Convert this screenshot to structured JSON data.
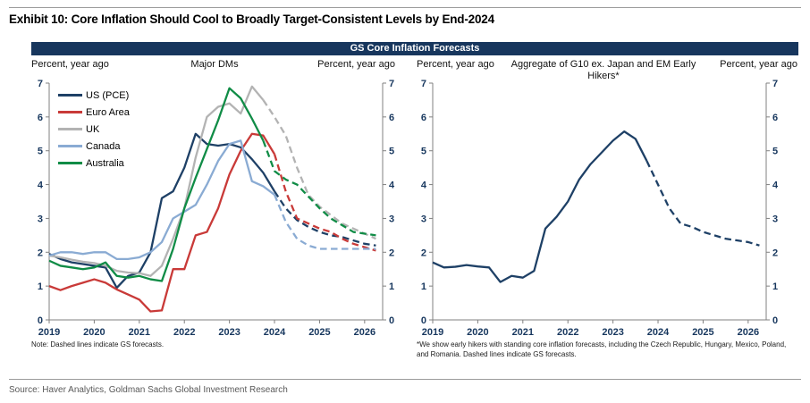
{
  "page": {
    "exhibit_title": "Exhibit 10: Core Inflation Should Cool to Broadly Target-Consistent Levels by End-2024",
    "banner_title": "GS Core Inflation Forecasts",
    "source": "Source: Haver Analytics, Goldman Sachs Global Investment Research"
  },
  "colors": {
    "banner_bg": "#17365d",
    "banner_text": "#ffffff",
    "axis_line": "#808080",
    "tick_label": "#17375e",
    "us_navy": "#1e4066",
    "euro_red": "#c93a38",
    "uk_gray": "#b3b3b3",
    "canada_blue": "#8aabd3",
    "australia_green": "#108c46"
  },
  "chart_data": [
    {
      "type": "line",
      "title": "Major DMs",
      "ylabel_left": "Percent, year ago",
      "ylabel_right": "Percent, year ago",
      "note": "Note: Dashed lines indicate GS forecasts.",
      "legend_position": "upper-left",
      "grid": false,
      "ylim": [
        0,
        7
      ],
      "y_ticks": [
        0,
        1,
        2,
        3,
        4,
        5,
        6,
        7
      ],
      "x_min": 2019,
      "x_max": 2026.4,
      "x_ticks": [
        2019,
        2020,
        2021,
        2022,
        2023,
        2024,
        2025,
        2026
      ],
      "x_start": 2019.0,
      "x_step": 0.25,
      "forecast_style": "dashed lines from forecast_from_index onward are GS forecasts",
      "series": [
        {
          "name": "US (PCE)",
          "color": "#1e4066",
          "forecast_from_index": 20,
          "values": [
            1.95,
            1.8,
            1.7,
            1.65,
            1.6,
            1.55,
            0.95,
            1.3,
            1.4,
            2.0,
            3.6,
            3.8,
            4.5,
            5.5,
            5.2,
            5.15,
            5.2,
            5.1,
            4.75,
            4.35,
            3.8,
            3.3,
            2.95,
            2.75,
            2.6,
            2.5,
            2.45,
            2.35,
            2.25,
            2.2
          ]
        },
        {
          "name": "Euro Area",
          "color": "#c93a38",
          "forecast_from_index": 20,
          "values": [
            1.0,
            0.88,
            1.0,
            1.1,
            1.2,
            1.1,
            0.9,
            0.75,
            0.6,
            0.25,
            0.28,
            1.5,
            1.5,
            2.5,
            2.6,
            3.3,
            4.3,
            5.0,
            5.5,
            5.45,
            4.9,
            3.8,
            3.0,
            2.85,
            2.7,
            2.6,
            2.4,
            2.25,
            2.15,
            2.05
          ]
        },
        {
          "name": "UK",
          "color": "#b3b3b3",
          "forecast_from_index": 19,
          "values": [
            1.9,
            1.85,
            1.78,
            1.72,
            1.68,
            1.6,
            1.45,
            1.4,
            1.38,
            1.3,
            1.6,
            2.4,
            3.3,
            4.8,
            6.0,
            6.3,
            6.4,
            6.1,
            6.9,
            6.5,
            6.0,
            5.45,
            4.5,
            3.7,
            3.35,
            3.1,
            2.85,
            2.7,
            2.55,
            2.4
          ]
        },
        {
          "name": "Canada",
          "color": "#8aabd3",
          "forecast_from_index": 20,
          "values": [
            1.9,
            2.0,
            2.0,
            1.95,
            2.0,
            2.0,
            1.8,
            1.8,
            1.85,
            2.0,
            2.3,
            3.0,
            3.2,
            3.4,
            4.0,
            4.7,
            5.2,
            5.3,
            4.1,
            3.95,
            3.7,
            2.9,
            2.4,
            2.2,
            2.1,
            2.1,
            2.1,
            2.1,
            2.1,
            2.1
          ]
        },
        {
          "name": "Australia",
          "color": "#108c46",
          "forecast_from_index": 19,
          "values": [
            1.75,
            1.6,
            1.55,
            1.5,
            1.55,
            1.7,
            1.3,
            1.25,
            1.3,
            1.2,
            1.15,
            2.1,
            3.3,
            4.2,
            5.05,
            5.9,
            6.85,
            6.55,
            5.95,
            5.3,
            4.4,
            4.15,
            4.0,
            3.65,
            3.3,
            3.0,
            2.8,
            2.6,
            2.55,
            2.5
          ]
        }
      ]
    },
    {
      "type": "line",
      "title": "Aggregate of G10 ex. Japan and EM Early Hikers*",
      "ylabel_left": "Percent, year ago",
      "ylabel_right": "Percent, year ago",
      "note": "*We show early hikers with standing core inflation forecasts, including the Czech Republic, Hungary, Mexico, Poland, and Romania. Dashed lines indicate GS forecasts.",
      "legend_position": "none",
      "grid": false,
      "ylim": [
        0,
        7
      ],
      "y_ticks": [
        0,
        1,
        2,
        3,
        4,
        5,
        6,
        7
      ],
      "x_min": 2019,
      "x_max": 2026.4,
      "x_ticks": [
        2019,
        2020,
        2021,
        2022,
        2023,
        2024,
        2025,
        2026
      ],
      "x_start": 2019.0,
      "x_step": 0.25,
      "forecast_style": "dashed line from forecast_from_index onward is GS forecast",
      "series": [
        {
          "name": "Aggregate of G10 ex. Japan and EM Early Hikers",
          "color": "#1e4066",
          "forecast_from_index": 19,
          "values": [
            1.7,
            1.55,
            1.57,
            1.62,
            1.58,
            1.55,
            1.12,
            1.3,
            1.25,
            1.45,
            2.7,
            3.05,
            3.5,
            4.15,
            4.6,
            4.95,
            5.3,
            5.57,
            5.35,
            4.7,
            4.0,
            3.3,
            2.85,
            2.75,
            2.6,
            2.5,
            2.4,
            2.35,
            2.3,
            2.2
          ]
        }
      ]
    }
  ]
}
